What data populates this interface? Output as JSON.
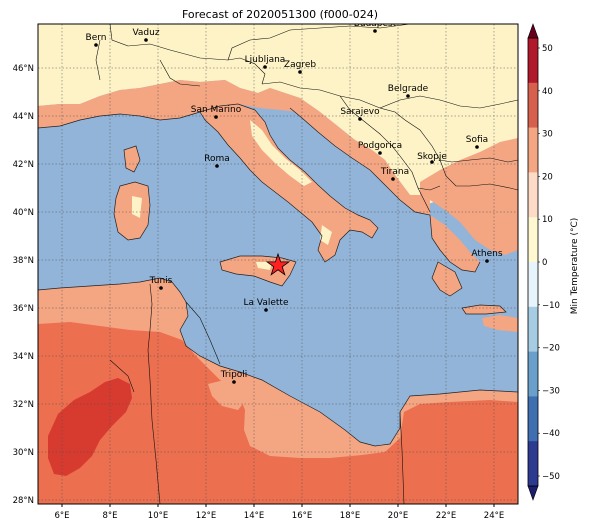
{
  "title": "Forecast of 2020051300 (f000-024)",
  "colorbar": {
    "label": "Min Temperature (°C)",
    "ticks": [
      "50",
      "40",
      "30",
      "20",
      "10",
      "0",
      "−10",
      "−20",
      "−30",
      "−40",
      "−50"
    ],
    "colors": [
      "#67001f",
      "#b2182b",
      "#d6604d",
      "#f4a582",
      "#fddbc7",
      "#fff8d0",
      "#e8f4fb",
      "#a6cce3",
      "#6a9fcc",
      "#3f6fb0",
      "#2c3a90",
      "#1e1e6e"
    ]
  },
  "map": {
    "xticks": [
      "6°E",
      "8°E",
      "10°E",
      "12°E",
      "14°E",
      "16°E",
      "18°E",
      "20°E",
      "22°E",
      "24°E"
    ],
    "yticks": [
      "46°N",
      "44°N",
      "42°N",
      "40°N",
      "38°N",
      "36°N",
      "34°N",
      "32°N",
      "30°N",
      "28°N"
    ],
    "colors": {
      "sea": "#92b4d8",
      "cold_land": "#fdf3c6",
      "warm": "#f4a582",
      "hot": "#ec6f4f",
      "hottest": "#d73a2f"
    },
    "cities": [
      {
        "name": "Bern"
      },
      {
        "name": "Vaduz"
      },
      {
        "name": "Budapest"
      },
      {
        "name": "Ljubljana"
      },
      {
        "name": "Zagreb"
      },
      {
        "name": "Belgrade"
      },
      {
        "name": "San Marino"
      },
      {
        "name": "Sarajevo"
      },
      {
        "name": "Sofia"
      },
      {
        "name": "Podgorica"
      },
      {
        "name": "Skopje"
      },
      {
        "name": "Roma"
      },
      {
        "name": "Tirana"
      },
      {
        "name": "Athens"
      },
      {
        "name": "Tunis"
      },
      {
        "name": "La Valette"
      },
      {
        "name": "Tripoli"
      }
    ],
    "marker": {
      "name": "star-marker",
      "color": "#ff2020"
    }
  }
}
